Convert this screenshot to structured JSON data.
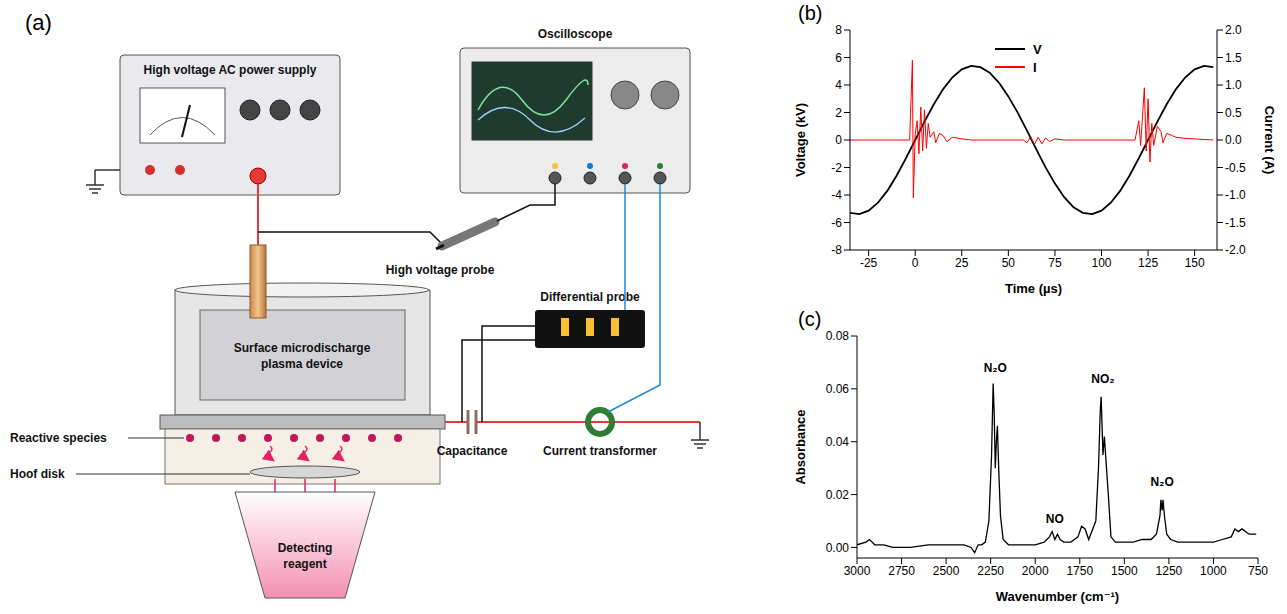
{
  "diagram": {
    "label": "(a)",
    "power_supply": "High voltage AC power supply",
    "oscilloscope": "Oscilloscope",
    "hv_probe": "High voltage probe",
    "differential_probe": "Differential probe",
    "device": "Surface microdischarge plasma device",
    "reactive_species": "Reactive species",
    "hoof_disk": "Hoof disk",
    "reagent": "Detecting reagent",
    "capacitance": "Capacitance",
    "current_transformer": "Current transformer"
  },
  "chart_data": [
    {
      "label": "(b)",
      "type": "line",
      "xlabel": "Time (µs)",
      "ylabel": "Voltage (kV)",
      "y2label": "Current (A)",
      "xlim": [
        -35,
        162
      ],
      "xticks": [
        -25,
        0,
        25,
        50,
        75,
        100,
        125,
        150
      ],
      "ylim": [
        -8,
        8
      ],
      "yticks": [
        -8,
        -6,
        -4,
        -2,
        0,
        2,
        4,
        6,
        8
      ],
      "y2lim": [
        -2,
        2
      ],
      "y2ticks": [
        {
          "value": -2,
          "label": "-2.0"
        },
        -1.5,
        {
          "value": -1,
          "label": "-1.0"
        },
        -0.5,
        {
          "value": 0,
          "label": "0.0"
        },
        0.5,
        {
          "value": 1,
          "label": "1.0"
        },
        1.5,
        {
          "value": 2,
          "label": "2.0"
        }
      ],
      "legend": "upper center",
      "series": [
        {
          "name": "V",
          "color": "#000000",
          "x": [
            -35,
            -30,
            -25,
            -20,
            -15,
            -10,
            -5,
            0,
            5,
            10,
            15,
            20,
            25,
            30,
            35,
            40,
            45,
            50,
            55,
            60,
            65,
            70,
            75,
            80,
            85,
            90,
            95,
            100,
            105,
            110,
            115,
            120,
            125,
            130,
            135,
            140,
            145,
            150,
            155,
            160
          ],
          "values": [
            -5.3,
            -5.39,
            -5.14,
            -4.56,
            -3.7,
            -2.6,
            -1.34,
            0,
            1.34,
            2.6,
            3.7,
            4.56,
            5.14,
            5.39,
            5.3,
            4.89,
            4.16,
            3.17,
            1.99,
            0.68,
            -0.68,
            -1.99,
            -3.17,
            -4.16,
            -4.89,
            -5.3,
            -5.39,
            -5.14,
            -4.56,
            -3.7,
            -2.6,
            -1.34,
            0,
            1.34,
            2.6,
            3.7,
            4.56,
            5.14,
            5.39,
            5.3
          ]
        },
        {
          "name": "I",
          "color": "#ff0000",
          "axis": "y2",
          "x": [
            -35,
            -5,
            -3,
            -1.5,
            -1,
            0,
            1,
            2,
            3,
            4,
            5,
            6,
            7,
            8,
            10,
            11,
            13,
            15,
            17,
            20,
            25,
            30,
            58,
            60,
            62,
            64,
            66,
            68,
            70,
            72,
            75,
            80,
            118,
            120,
            121,
            123,
            124,
            125,
            126,
            127,
            128,
            130,
            132,
            133,
            135,
            138,
            140,
            145,
            150,
            160
          ],
          "values": [
            0,
            0,
            0,
            1.45,
            -1.05,
            0.1,
            0.35,
            -0.25,
            0.6,
            -0.2,
            0.55,
            -0.15,
            0.3,
            0.05,
            0.15,
            -0.05,
            0.12,
            0.08,
            -0.03,
            0.05,
            0.02,
            0,
            0,
            -0.05,
            0.06,
            -0.08,
            0.05,
            -0.07,
            0.04,
            -0.03,
            0.02,
            0,
            0,
            0.35,
            -0.1,
            0.95,
            -0.2,
            0.75,
            -0.4,
            0.3,
            -0.1,
            0.25,
            0.15,
            -0.05,
            0.12,
            0.08,
            0.05,
            0.03,
            0.02,
            0
          ]
        }
      ]
    },
    {
      "label": "(c)",
      "type": "line",
      "xlabel": "Wavenumber (cm⁻¹)",
      "ylabel": "Absorbance",
      "color": "#000000",
      "xlim": [
        3000,
        750
      ],
      "xticks": [
        3000,
        2750,
        2500,
        2250,
        2000,
        1750,
        1500,
        1250,
        1000,
        750
      ],
      "ylim": [
        -0.004,
        0.08
      ],
      "yticks": [
        {
          "value": 0,
          "label": "0.00"
        },
        0.02,
        0.04,
        0.06,
        0.08
      ],
      "x": [
        3000,
        2950,
        2930,
        2900,
        2850,
        2800,
        2750,
        2700,
        2600,
        2500,
        2400,
        2360,
        2340,
        2320,
        2300,
        2280,
        2260,
        2245,
        2236,
        2230,
        2224,
        2218,
        2212,
        2205,
        2195,
        2180,
        2150,
        2100,
        2000,
        1950,
        1920,
        1905,
        1890,
        1875,
        1860,
        1840,
        1800,
        1760,
        1740,
        1720,
        1700,
        1660,
        1645,
        1635,
        1630,
        1620,
        1612,
        1600,
        1590,
        1575,
        1550,
        1500,
        1450,
        1400,
        1350,
        1320,
        1300,
        1295,
        1288,
        1283,
        1275,
        1262,
        1240,
        1200,
        1100,
        1000,
        950,
        900,
        880,
        860,
        840,
        800,
        760
      ],
      "values": [
        0.001,
        0.002,
        0.003,
        0.001,
        0.001,
        0,
        0,
        0,
        0.001,
        0.001,
        0.001,
        0,
        -0.002,
        0.001,
        0.001,
        0.002,
        0.01,
        0.035,
        0.062,
        0.05,
        0.03,
        0.04,
        0.046,
        0.03,
        0.012,
        0.003,
        0.001,
        0.001,
        0.001,
        0.002,
        0.004,
        0.006,
        0.003,
        0.005,
        0.003,
        0.002,
        0.002,
        0.004,
        0.008,
        0.007,
        0.003,
        0.01,
        0.03,
        0.052,
        0.057,
        0.035,
        0.042,
        0.03,
        0.02,
        0.004,
        0.002,
        0.002,
        0.002,
        0.003,
        0.003,
        0.005,
        0.012,
        0.018,
        0.014,
        0.018,
        0.012,
        0.005,
        0.003,
        0.002,
        0.002,
        0.002,
        0.003,
        0.004,
        0.007,
        0.006,
        0.007,
        0.005,
        0.005
      ],
      "annotations": [
        {
          "text": "N₂O",
          "x": 2224,
          "y": 0.068
        },
        {
          "text": "NO",
          "x": 1890,
          "y": 0.011
        },
        {
          "text": "NO₂",
          "x": 1620,
          "y": 0.064
        },
        {
          "text": "N₂O",
          "x": 1288,
          "y": 0.025
        }
      ]
    }
  ]
}
